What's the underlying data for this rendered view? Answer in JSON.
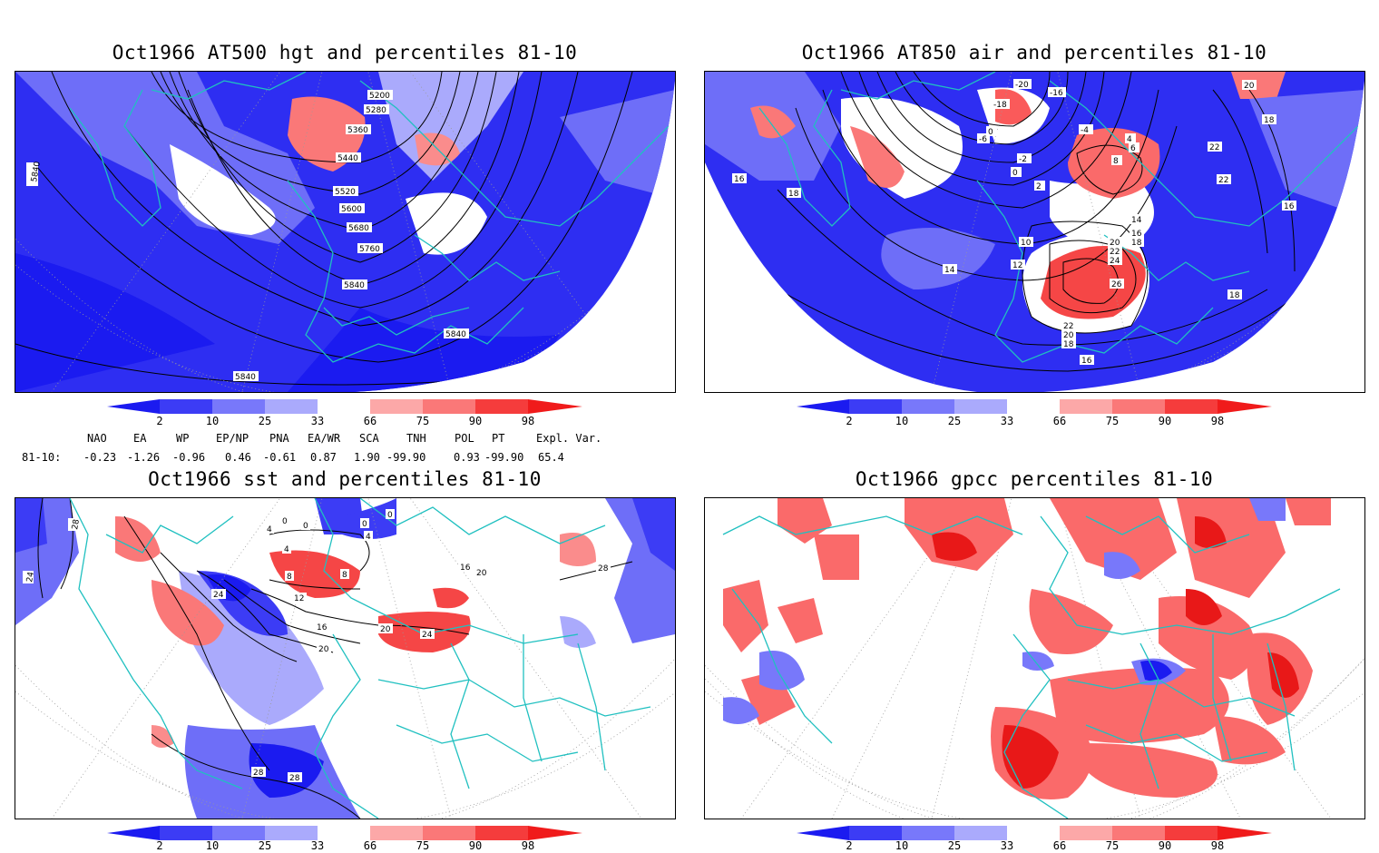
{
  "panels": [
    {
      "title": "Oct1966 AT500 hgt and percentiles 81-10",
      "contour_labels": [
        "5200",
        "5280",
        "5360",
        "5440",
        "5520",
        "5600",
        "5680",
        "5760",
        "5840",
        "5840",
        "5840",
        "5840"
      ]
    },
    {
      "title": "Oct1966 AT850 air and percentiles 81-10",
      "contour_labels": [
        "-20",
        "-16",
        "-18",
        "-6",
        "0",
        "-2",
        "0",
        "2",
        "-4",
        "4",
        "6",
        "8",
        "14",
        "16",
        "18",
        "20",
        "22",
        "24",
        "26",
        "22",
        "20",
        "18",
        "16",
        "10",
        "12",
        "14",
        "16",
        "18",
        "18",
        "22",
        "22",
        "20",
        "18",
        "16"
      ]
    },
    {
      "title": "Oct1966 sst and percentiles 81-10",
      "contour_labels": [
        "28",
        "24",
        "4",
        "0",
        "0",
        "0",
        "0",
        "4",
        "4",
        "8",
        "8",
        "12",
        "16",
        "20",
        "24",
        "28",
        "28",
        "24",
        "20",
        "16",
        "20",
        "28"
      ]
    },
    {
      "title": "Oct1966 gpcc percentiles 81-10",
      "contour_labels": []
    }
  ],
  "colorbar": {
    "labels": [
      "2",
      "10",
      "25",
      "33",
      "66",
      "75",
      "90",
      "98"
    ],
    "colors": {
      "blue_dark": "#1b1bf0",
      "blue_mid": "#3c3cf5",
      "blue_light": "#7878fa",
      "blue_pale": "#aaaafc",
      "red_pale": "#fca8a8",
      "red_light": "#fa7878",
      "red_mid": "#f53c3c",
      "red_dark": "#f01b1b"
    }
  },
  "indices": {
    "names": [
      "NAO",
      "EA",
      "WP",
      "EP/NP",
      "PNA",
      "EA/WR",
      "SCA",
      "TNH",
      "POL",
      "PT",
      "Expl. Var."
    ],
    "row_label": "81-10:",
    "values": [
      "-0.23",
      "-1.26",
      "-0.96",
      "0.46",
      "-0.61",
      "0.87",
      "1.90",
      "-99.90",
      "0.93",
      "-99.90",
      "65.4"
    ]
  },
  "map_colors": {
    "coast": "#20c0c0",
    "contour": "#000000",
    "grid": "#9a9a9a"
  }
}
